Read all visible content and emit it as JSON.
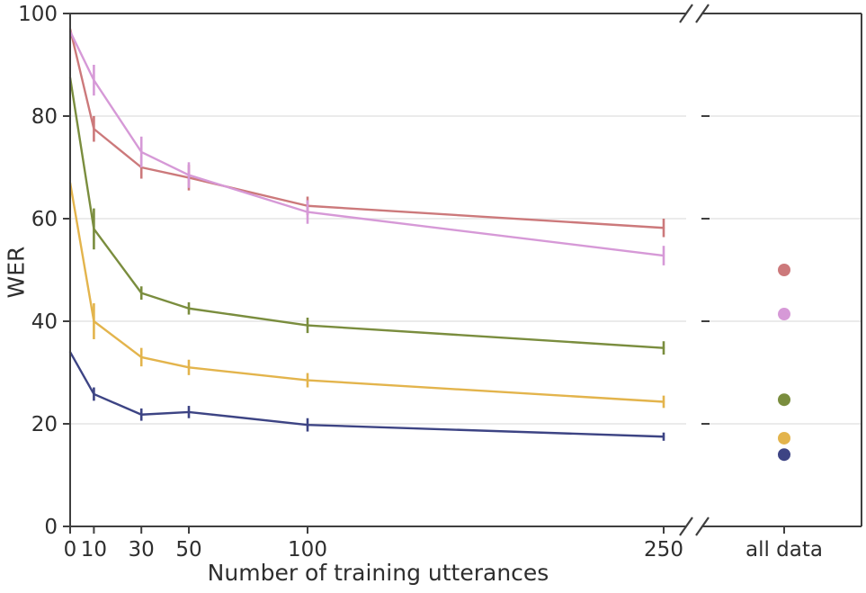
{
  "figure": {
    "background_color": "#ffffff",
    "text_color": "#2e2e2e",
    "spine_color": "#3f3f3f",
    "grid_color": "#e8e8e8"
  },
  "chart_data": {
    "type": "line",
    "title": "",
    "xlabel": "Number of training utterances",
    "ylabel": "WER",
    "legend": "none",
    "grid": "horizontal",
    "broken_x_axis": true,
    "right_panel_tick_label": "all data",
    "ylim": [
      0,
      100
    ],
    "xlim": [
      0,
      260
    ],
    "y_ticks": [
      0,
      20,
      40,
      60,
      80,
      100
    ],
    "x_ticks": [
      0,
      10,
      30,
      50,
      100,
      250
    ],
    "x": [
      0,
      10,
      30,
      50,
      100,
      250
    ],
    "series": [
      {
        "name": "salmon",
        "color": "#cc797b",
        "values": [
          97,
          77.5,
          70,
          68,
          62.5,
          58.2
        ],
        "yerr": [
          0,
          2.5,
          2.2,
          2.5,
          1.8,
          1.8
        ],
        "all_data_value": 50
      },
      {
        "name": "plum",
        "color": "#d699d7",
        "values": [
          96.5,
          87,
          73,
          68.5,
          61.3,
          52.8
        ],
        "yerr": [
          0,
          3,
          3,
          2.5,
          2.3,
          1.9
        ],
        "all_data_value": 41.4
      },
      {
        "name": "olive",
        "color": "#7a8d3e",
        "values": [
          87.5,
          58,
          45.5,
          42.5,
          39.2,
          34.8
        ],
        "yerr": [
          0,
          4,
          1.3,
          1.2,
          1.5,
          1.3
        ],
        "all_data_value": 24.7
      },
      {
        "name": "gold",
        "color": "#e3b44c",
        "values": [
          67,
          40,
          33,
          31,
          28.5,
          24.3
        ],
        "yerr": [
          0,
          3.5,
          1.8,
          1.5,
          1.4,
          1.2
        ],
        "all_data_value": 17.2
      },
      {
        "name": "navy",
        "color": "#3d4484",
        "values": [
          34,
          25.8,
          21.8,
          22.3,
          19.8,
          17.5
        ],
        "yerr": [
          0,
          1.3,
          1.2,
          1.2,
          1.3,
          0.8
        ],
        "all_data_value": 14
      }
    ]
  }
}
